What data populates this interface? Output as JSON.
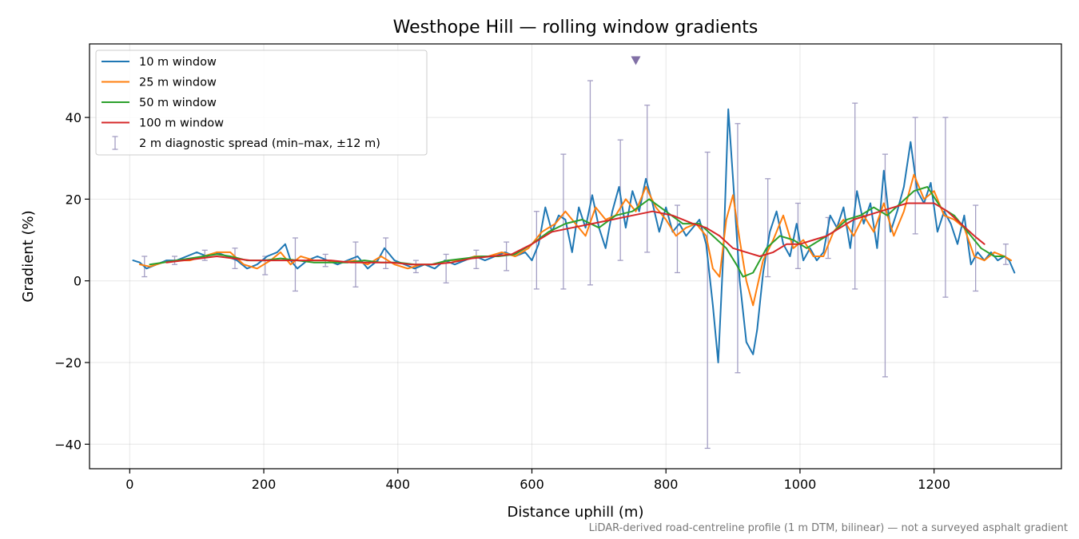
{
  "chart_data": {
    "type": "line",
    "title": "Westhope Hill — rolling window gradients",
    "xlabel": "Distance uphill (m)",
    "ylabel": "Gradient (%)",
    "xlim": [
      -60,
      1390
    ],
    "ylim": [
      -46,
      58
    ],
    "x_ticks": [
      0,
      200,
      400,
      600,
      800,
      1000,
      1200
    ],
    "x_tick_labels": [
      "0",
      "200",
      "400",
      "600",
      "800",
      "1000",
      "1200"
    ],
    "y_ticks": [
      -40,
      -20,
      0,
      20,
      40
    ],
    "y_tick_labels": [
      "−40",
      "−20",
      "0",
      "20",
      "40"
    ],
    "grid": true,
    "legend_position": "upper-left",
    "footnote": "LiDAR-derived road-centreline profile (1 m DTM, bilinear) — not a surveyed asphalt gradient",
    "marker": {
      "x": 755,
      "y": 54,
      "shape": "triangle-down",
      "color": "#8170a6"
    },
    "series": [
      {
        "name": "10 m window",
        "color": "#1f77b4",
        "x": [
          5,
          15,
          25,
          40,
          55,
          70,
          85,
          100,
          115,
          130,
          145,
          160,
          175,
          190,
          205,
          220,
          232,
          240,
          250,
          265,
          280,
          295,
          310,
          325,
          340,
          355,
          370,
          380,
          395,
          410,
          425,
          440,
          455,
          470,
          485,
          500,
          515,
          530,
          545,
          560,
          575,
          590,
          600,
          610,
          620,
          630,
          640,
          650,
          660,
          670,
          680,
          690,
          700,
          710,
          720,
          730,
          740,
          750,
          760,
          770,
          780,
          790,
          800,
          810,
          820,
          830,
          840,
          850,
          860,
          870,
          878,
          886,
          893,
          900,
          910,
          920,
          930,
          936,
          945,
          955,
          965,
          975,
          985,
          995,
          1005,
          1015,
          1025,
          1035,
          1045,
          1055,
          1065,
          1075,
          1085,
          1095,
          1105,
          1115,
          1125,
          1135,
          1145,
          1155,
          1165,
          1175,
          1185,
          1195,
          1205,
          1215,
          1225,
          1235,
          1245,
          1255,
          1265,
          1275,
          1285,
          1295,
          1305,
          1312,
          1320
        ],
        "y": [
          5,
          4.5,
          3,
          4,
          5,
          5,
          6,
          7,
          6,
          7,
          6,
          5,
          3,
          4,
          6,
          7,
          9,
          5,
          3,
          5,
          6,
          5,
          4,
          5,
          6,
          3,
          5,
          8,
          5,
          4,
          3,
          4,
          3,
          5,
          4,
          5,
          6,
          5,
          6,
          7,
          6,
          7,
          5,
          9,
          18,
          12,
          16,
          15,
          7,
          18,
          13,
          21,
          13,
          8,
          17,
          23,
          13,
          22,
          17,
          25,
          19,
          12,
          18,
          12,
          14,
          11,
          13,
          15,
          9,
          -6,
          -20,
          8,
          42,
          25,
          0,
          -15,
          -18,
          -12,
          2,
          12,
          17,
          9,
          6,
          14,
          5,
          8,
          5,
          7,
          16,
          13,
          18,
          8,
          22,
          14,
          19,
          8,
          27,
          12,
          17,
          23,
          34,
          22,
          19,
          24,
          12,
          17,
          14,
          9,
          16,
          4,
          7,
          5,
          7,
          5,
          6,
          5,
          2
        ]
      },
      {
        "name": "25 m window",
        "color": "#ff7f0e",
        "x": [
          15,
          30,
          50,
          70,
          90,
          110,
          130,
          150,
          170,
          190,
          210,
          225,
          240,
          255,
          275,
          295,
          315,
          335,
          355,
          375,
          395,
          415,
          435,
          455,
          475,
          495,
          515,
          535,
          555,
          575,
          595,
          615,
          635,
          650,
          665,
          680,
          695,
          710,
          725,
          740,
          755,
          770,
          785,
          800,
          815,
          830,
          845,
          860,
          870,
          880,
          890,
          900,
          910,
          920,
          930,
          945,
          960,
          975,
          990,
          1005,
          1020,
          1035,
          1050,
          1065,
          1080,
          1095,
          1110,
          1125,
          1140,
          1155,
          1170,
          1185,
          1200,
          1215,
          1230,
          1245,
          1260,
          1275,
          1290,
          1305,
          1315
        ],
        "y": [
          4,
          3.5,
          4.5,
          5,
          5,
          6,
          7,
          7,
          4,
          3,
          5,
          7,
          4,
          6,
          5,
          5,
          4.5,
          5,
          4,
          6,
          4,
          3,
          4,
          4,
          5,
          5,
          6,
          6,
          7,
          6,
          8,
          12,
          14,
          17,
          14,
          11,
          18,
          15,
          16,
          20,
          17,
          23,
          18,
          15,
          11,
          13,
          14,
          11,
          3,
          1,
          15,
          21,
          10,
          0,
          -6,
          5,
          10,
          16,
          8,
          10,
          6,
          6,
          12,
          15,
          11,
          16,
          12,
          19,
          11,
          17,
          26,
          20,
          22,
          16,
          15,
          13,
          6,
          5,
          7,
          6,
          5
        ]
      },
      {
        "name": "50 m window",
        "color": "#2ca02c",
        "x": [
          30,
          50,
          70,
          90,
          110,
          130,
          150,
          175,
          200,
          225,
          250,
          275,
          300,
          325,
          350,
          375,
          400,
          425,
          450,
          475,
          500,
          525,
          550,
          575,
          600,
          625,
          650,
          675,
          700,
          725,
          750,
          775,
          800,
          825,
          850,
          870,
          890,
          905,
          915,
          930,
          950,
          970,
          990,
          1010,
          1030,
          1050,
          1070,
          1090,
          1110,
          1130,
          1150,
          1170,
          1190,
          1210,
          1230,
          1250,
          1270,
          1290,
          1305
        ],
        "y": [
          4,
          4.5,
          5,
          5.5,
          6,
          6.5,
          6,
          5,
          5,
          5.5,
          5,
          4.5,
          4.5,
          4.5,
          5,
          4.5,
          4.5,
          4,
          4,
          5,
          5.5,
          6,
          6,
          6.5,
          9,
          12,
          14,
          15,
          13,
          16,
          17,
          20,
          17,
          14,
          14,
          11,
          8,
          4,
          1,
          2,
          8,
          11,
          10,
          8,
          10,
          12,
          15,
          16,
          18,
          16,
          19,
          22,
          23,
          18,
          16,
          12,
          8,
          6,
          6
        ]
      },
      {
        "name": "100 m window",
        "color": "#d62728",
        "x": [
          55,
          80,
          105,
          130,
          155,
          180,
          210,
          240,
          270,
          300,
          330,
          360,
          390,
          420,
          450,
          480,
          510,
          540,
          570,
          600,
          630,
          660,
          690,
          720,
          750,
          780,
          810,
          840,
          860,
          880,
          900,
          920,
          940,
          960,
          980,
          1000,
          1020,
          1040,
          1060,
          1080,
          1100,
          1120,
          1140,
          1160,
          1180,
          1200,
          1220,
          1240,
          1260,
          1275
        ],
        "y": [
          4.5,
          5,
          5.5,
          6,
          5.5,
          5,
          5,
          5,
          5,
          5,
          4.5,
          4.5,
          4.5,
          4,
          4,
          4.5,
          5.5,
          6,
          6.5,
          9,
          12,
          13,
          14,
          15,
          16,
          17,
          16,
          14,
          13,
          11,
          8,
          7,
          6,
          7,
          9,
          9,
          10,
          11,
          13,
          15,
          16,
          17,
          18,
          19,
          19,
          19,
          17,
          14,
          11,
          9
        ]
      },
      {
        "name": "2 m diagnostic spread (min–max, ±12 m)",
        "type": "errorbar",
        "color": "#a49fc4",
        "x": [
          22,
          67,
          112,
          157,
          202,
          247,
          292,
          337,
          382,
          427,
          472,
          517,
          562,
          607,
          647,
          687,
          732,
          772,
          817,
          862,
          907,
          952,
          997,
          1042,
          1082,
          1127,
          1172,
          1217,
          1262,
          1307
        ],
        "low": [
          1,
          4,
          5,
          3,
          1.5,
          -2.5,
          3.5,
          -1.5,
          3,
          2,
          -0.5,
          3,
          2.5,
          -2,
          -2,
          -1,
          5,
          7,
          2,
          -41,
          -22.5,
          1,
          3,
          5.5,
          -2,
          -23.5,
          11.5,
          -4,
          -2.5,
          4
        ],
        "high": [
          6,
          6,
          7.5,
          8,
          6,
          10.5,
          6.5,
          9.5,
          10.5,
          5,
          6.5,
          7.5,
          9.5,
          17,
          31,
          49,
          34.5,
          43,
          18.5,
          31.5,
          38.5,
          25,
          19,
          15.5,
          43.5,
          31,
          40,
          40,
          18.5,
          9
        ]
      }
    ]
  }
}
